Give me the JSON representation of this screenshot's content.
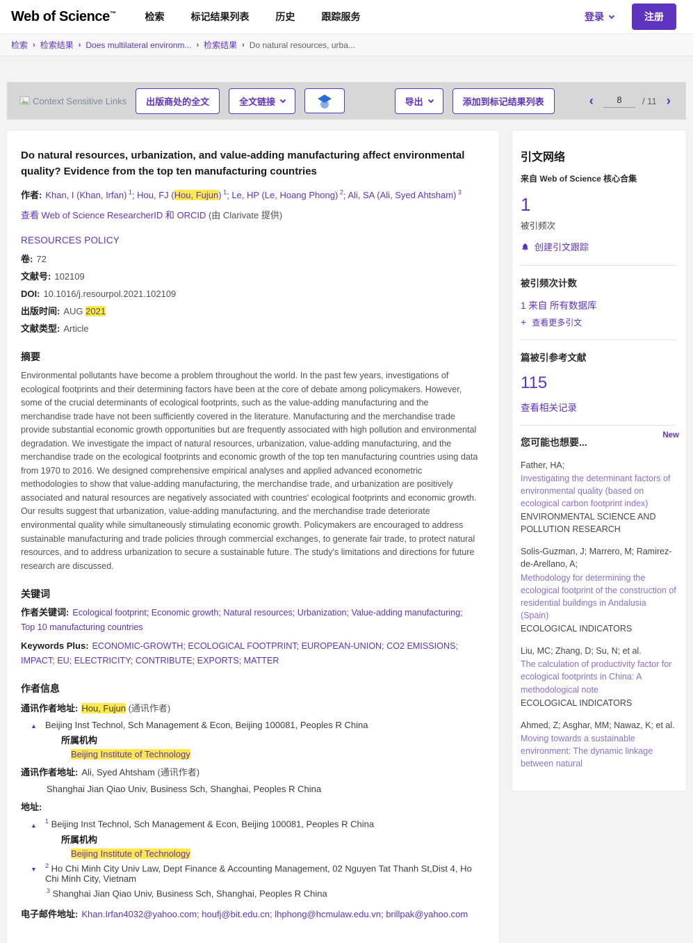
{
  "colors": {
    "accent": "#5e33bf",
    "highlight": "#ffe94d",
    "rec_link": "#8b6fcb",
    "toolbar_bg": "#d8d7d8"
  },
  "brand": {
    "logo": "Web of Science",
    "tm": "TM"
  },
  "nav": {
    "items": [
      "检索",
      "标记结果列表",
      "历史",
      "跟踪服务"
    ],
    "login": "登录",
    "register": "注册"
  },
  "breadcrumb": [
    "检索",
    "检索结果",
    "Does multilateral environm...",
    "检索结果",
    "Do natural resources, urba..."
  ],
  "toolbar": {
    "context_links": "Context Sensitive Links",
    "fulltext_publisher": "出版商处的全文",
    "fulltext_links": "全文链接",
    "export": "导出",
    "add_to_marked": "添加到标记结果列表",
    "page": "8",
    "page_total": "/ 11"
  },
  "article": {
    "title": "Do natural resources, urbanization, and value-adding manufacturing affect environmental quality? Evidence from the top ten manufacturing countries",
    "authors_label": "作者:",
    "authors": [
      {
        "pre": "Khan, I (Khan, Irfan)",
        "hl": "",
        "post": "",
        "sup": "1"
      },
      {
        "pre": "Hou, FJ (",
        "hl": "Hou, Fujun",
        "post": ")",
        "sup": "1"
      },
      {
        "pre": "Le, HP (Le, Hoang Phong)",
        "hl": "",
        "post": "",
        "sup": "2"
      },
      {
        "pre": "Ali, SA (Ali, Syed Ahtsham)",
        "hl": "",
        "post": "",
        "sup": "3"
      }
    ],
    "researcher_link": "查看 Web of Science ResearcherID 和 ORCID",
    "researcher_suffix": "(由 Clarivate 提供)",
    "journal": "RESOURCES POLICY",
    "meta": {
      "volume_label": "卷:",
      "volume": "72",
      "article_no_label": "文献号:",
      "article_no": "102109",
      "doi_label": "DOI:",
      "doi": "10.1016/j.resourpol.2021.102109",
      "pubdate_label": "出版时间:",
      "pubdate_pre": "AUG ",
      "pubdate_hl": "2021",
      "doctype_label": "文献类型:",
      "doctype": "Article"
    },
    "abstract_label": "摘要",
    "abstract": "Environmental pollutants have become a problem throughout the world. In the past few years, investigations of ecological footprints and their determining factors have been at the core of debate among policymakers. However, some of the crucial determinants of ecological footprints, such as the value-adding manufacturing and the merchandise trade have not been sufficiently covered in the literature. Manufacturing and the merchandise trade provide substantial economic growth opportunities but are frequently associated with high pollution and environmental degradation. We investigate the impact of natural resources, urbanization, value-adding manufacturing, and the merchandise trade on the ecological footprints and economic growth of the top ten manufacturing countries using data from 1970 to 2016. We designed comprehensive empirical analyses and applied advanced econometric methodologies to show that value-adding manufacturing, the merchandise trade, and urbanization are positively associated and natural resources are negatively associated with countries' ecological footprints and economic growth. Our results suggest that urbanization, value-adding manufacturing, and the merchandise trade deteriorate environmental quality while simultaneously stimulating economic growth. Policymakers are encouraged to address sustainable manufacturing and trade policies through commercial exchanges, to generate fair trade, to protect natural resources, and to address urbanization to secure a sustainable future. The study's limitations and directions for future research are discussed.",
    "keywords_label": "关键词",
    "author_kw_label": "作者关键词:",
    "author_keywords": [
      "Ecological footprint",
      "Economic growth",
      "Natural resources",
      "Urbanization",
      "Value-adding manufacturing",
      "Top 10 manufacturing countries"
    ],
    "kw_plus_label": "Keywords Plus:",
    "keywords_plus": [
      "ECONOMIC-GROWTH",
      "ECOLOGICAL FOOTPRINT",
      "EUROPEAN-UNION",
      "CO2 EMISSIONS",
      "IMPACT",
      "EU",
      "ELECTRICITY",
      "CONTRIBUTE",
      "EXPORTS",
      "MATTER"
    ]
  },
  "author_info": {
    "heading": "作者信息",
    "corr_label": "通讯作者地址:",
    "corr1_name": "Hou, Fujun",
    "corr_suffix": "(通讯作者)",
    "corr1_address": "Beijing Inst Technol, Sch Management & Econ, Beijing 100081, Peoples R China",
    "org_label": "所属机构",
    "org_name": "Beijing Institute of Technology",
    "corr2_name": "Ali, Syed Ahtsham",
    "corr2_address": "Shanghai Jian Qiao Univ, Business Sch, Shanghai, Peoples R China",
    "addresses_label": "地址:",
    "addresses": [
      {
        "sup": "1",
        "text": "Beijing Inst Technol, Sch Management & Econ, Beijing 100081, Peoples R China"
      },
      {
        "sup": "2",
        "text": "Ho Chi Minh City Univ Law, Dept Finance & Accounting Management, 02 Nguyen Tat Thanh St,Dist 4, Ho Chi Minh City, Vietnam"
      },
      {
        "sup": "3",
        "text": "Shanghai Jian Qiao Univ, Business Sch, Shanghai, Peoples R China"
      }
    ],
    "email_label": "电子邮件地址:",
    "emails": [
      "Khan.Irfan4032@yahoo.com",
      "houfj@bit.edu.cn",
      "lhphong@hcmulaw.edu.vn",
      "brillpak@yahoo.com"
    ]
  },
  "sidebar": {
    "citation_network": "引文网络",
    "from_core": "来自 Web of Science 核心合集",
    "times_cited_value": "1",
    "times_cited_label": "被引频次",
    "create_alert": "创建引文跟踪",
    "counts_label": "被引频次计数",
    "all_db_link": "1 来自 所有数据库",
    "view_more_citations": "查看更多引文",
    "cited_refs_label": "篇被引参考文献",
    "cited_refs_value": "115",
    "view_related": "查看相关记录",
    "suggestions_label": "您可能也想要...",
    "new_badge": "New",
    "recs": [
      {
        "authors": "Father, HA;",
        "title": "Investigating the determinant factors of environmental quality (based on ecological carbon footprint index)",
        "journal": "ENVIRONMENTAL SCIENCE AND POLLUTION RESEARCH"
      },
      {
        "authors": "Solis-Guzman, J; Marrero, M; Ramirez-de-Arellano, A;",
        "title": "Methodology for determining the ecological footprint of the construction of residential buildings in Andalusia (Spain)",
        "journal": "ECOLOGICAL INDICATORS"
      },
      {
        "authors": "Liu, MC; Zhang, D; Su, N; et al.",
        "title": "The calculation of productivity factor for ecological footprints in China: A methodological note",
        "journal": "ECOLOGICAL INDICATORS"
      },
      {
        "authors": "Ahmed, Z; Asghar, MM; Nawaz, K; et al.",
        "title": "Moving towards a sustainable environment: The dynamic linkage between natural",
        "journal": ""
      }
    ]
  }
}
